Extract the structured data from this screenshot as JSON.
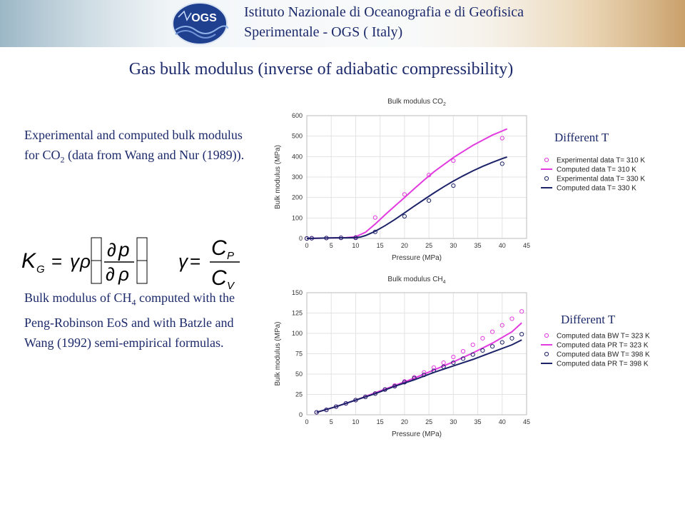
{
  "header": {
    "institute_line1": "Istituto Nazionale di Oceanografia e di Geofisica",
    "institute_line2": "Sperimentale - OGS ( Italy)",
    "logo_text": "OGS"
  },
  "page_title": "Gas bulk modulus (inverse of  adiabatic compressibility)",
  "text1": {
    "part1": "Experimental and computed bulk modulus for CO",
    "sub": "2",
    "part2": " (data from Wang and Nur (1989))."
  },
  "text2": {
    "part1": "Bulk modulus of  CH",
    "sub": "4",
    "part2": " computed with the Peng-Robinson EoS and with Batzle and Wang (1992)  semi-empirical formulas."
  },
  "formula": {
    "K": "K",
    "K_sub": "G",
    "eq": "=",
    "gamma": "γ",
    "rho": "ρ",
    "partial": "∂",
    "p": "p",
    "C": "C",
    "C_sub_P": "P",
    "C_sub_V": "V"
  },
  "labels": {
    "different_t_1": "Different T",
    "different_t_2": "Different T"
  },
  "colors": {
    "magenta": "#e23be0",
    "navy": "#1c2268",
    "text": "#1c2a6b"
  },
  "chart_data": [
    {
      "type": "line",
      "title": "Bulk modulus CO",
      "title_sub": "2",
      "xlabel": "Pressure (MPa)",
      "ylabel": "Bulk modulus (MPa)",
      "xlim": [
        0,
        45
      ],
      "ylim": [
        0,
        600
      ],
      "xticks": [
        0,
        5,
        10,
        15,
        20,
        25,
        30,
        35,
        40,
        45
      ],
      "yticks": [
        0,
        100,
        200,
        300,
        400,
        500,
        600
      ],
      "grid": true,
      "legend_position": "right",
      "series": [
        {
          "name": "Experimental data T= 310 K",
          "kind": "points",
          "color": "#e23be0",
          "x": [
            0,
            1,
            4,
            7,
            10,
            14,
            20,
            25,
            30,
            40
          ],
          "y": [
            0,
            1,
            2,
            3,
            5,
            102,
            215,
            310,
            380,
            490
          ]
        },
        {
          "name": "Computed data T= 310 K",
          "kind": "line",
          "color": "#e23be0",
          "x": [
            0,
            2,
            4,
            6,
            8,
            10,
            12,
            14,
            16,
            18,
            20,
            22,
            24,
            26,
            28,
            30,
            32,
            34,
            36,
            38,
            40,
            41
          ],
          "y": [
            0,
            1,
            2,
            3,
            4,
            8,
            30,
            70,
            115,
            158,
            200,
            243,
            285,
            325,
            360,
            395,
            425,
            455,
            480,
            505,
            525,
            535
          ]
        },
        {
          "name": "Experimental data T= 330 K",
          "kind": "points",
          "color": "#1c2268",
          "x": [
            0,
            1,
            4,
            7,
            10,
            14,
            20,
            25,
            30,
            40
          ],
          "y": [
            0,
            1,
            2,
            3,
            3,
            32,
            108,
            185,
            258,
            365
          ]
        },
        {
          "name": "Computed data T= 330 K",
          "kind": "line",
          "color": "#1c2268",
          "x": [
            0,
            2,
            4,
            6,
            8,
            10,
            11,
            12,
            14,
            16,
            18,
            20,
            22,
            24,
            26,
            28,
            30,
            32,
            34,
            36,
            38,
            40,
            41
          ],
          "y": [
            0,
            1,
            2,
            3,
            3,
            4,
            7,
            14,
            35,
            62,
            92,
            125,
            158,
            190,
            222,
            252,
            280,
            306,
            330,
            352,
            372,
            390,
            398
          ]
        }
      ]
    },
    {
      "type": "line",
      "title": "Bulk modulus CH",
      "title_sub": "4",
      "xlabel": "Pressure (MPa)",
      "ylabel": "Bulk modulus (MPa)",
      "xlim": [
        0,
        45
      ],
      "ylim": [
        0,
        150
      ],
      "xticks": [
        0,
        5,
        10,
        15,
        20,
        25,
        30,
        35,
        40,
        45
      ],
      "yticks": [
        0,
        25,
        50,
        75,
        100,
        125,
        150
      ],
      "grid": true,
      "legend_position": "right",
      "series": [
        {
          "name": "Computed data BW T= 323 K",
          "kind": "points",
          "color": "#e23be0",
          "x": [
            2,
            4,
            6,
            8,
            10,
            12,
            14,
            16,
            18,
            20,
            22,
            24,
            26,
            28,
            30,
            32,
            34,
            36,
            38,
            40,
            42,
            44
          ],
          "y": [
            3,
            6,
            10,
            14,
            18,
            22,
            26,
            31,
            36,
            41,
            46,
            52,
            58,
            64,
            71,
            78,
            86,
            94,
            102,
            110,
            118,
            127
          ]
        },
        {
          "name": "Computed data PR T= 323 K",
          "kind": "line",
          "color": "#e23be0",
          "x": [
            2,
            6,
            10,
            14,
            18,
            22,
            26,
            30,
            34,
            38,
            42,
            44
          ],
          "y": [
            3,
            10,
            18,
            27,
            36,
            45,
            55,
            65,
            76,
            88,
            102,
            113
          ]
        },
        {
          "name": "Computed data BW T= 398 K",
          "kind": "points",
          "color": "#1c2268",
          "x": [
            2,
            4,
            6,
            8,
            10,
            12,
            14,
            16,
            18,
            20,
            22,
            24,
            26,
            28,
            30,
            32,
            34,
            36,
            38,
            40,
            42,
            44
          ],
          "y": [
            3,
            6,
            10,
            14,
            18,
            22,
            26,
            31,
            35,
            40,
            45,
            49,
            54,
            59,
            64,
            69,
            74,
            79,
            84,
            89,
            94,
            99
          ]
        },
        {
          "name": "Computed data PR T= 398 K",
          "kind": "line",
          "color": "#1c2268",
          "x": [
            2,
            6,
            10,
            14,
            18,
            22,
            26,
            30,
            34,
            38,
            42,
            44
          ],
          "y": [
            3,
            10,
            18,
            26,
            35,
            43,
            52,
            60,
            68,
            77,
            86,
            92
          ]
        }
      ]
    }
  ]
}
